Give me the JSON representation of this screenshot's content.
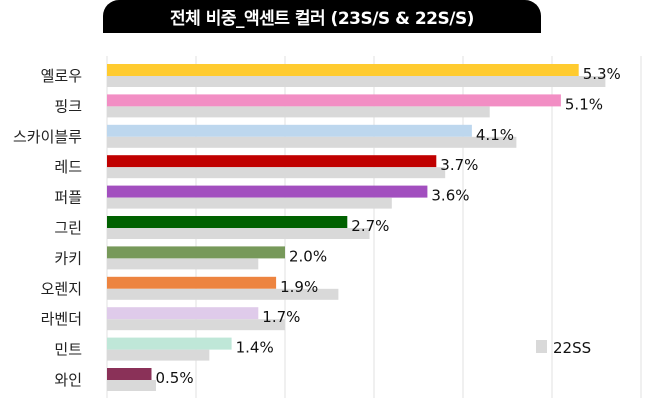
{
  "chart_data": {
    "type": "bar",
    "orientation": "horizontal",
    "title": "전체 비중_액센트 컬러 (23S/S & 22S/S)",
    "categories": [
      "옐로우",
      "핑크",
      "스카이블루",
      "레드",
      "퍼플",
      "그린",
      "카키",
      "오렌지",
      "라벤더",
      "민트",
      "와인"
    ],
    "series": [
      {
        "name": "23SS",
        "values": [
          5.3,
          5.1,
          4.1,
          3.7,
          3.6,
          2.7,
          2.0,
          1.9,
          1.7,
          1.4,
          0.5
        ],
        "colors": [
          "#FFCB2F",
          "#F28EC4",
          "#BDD7EE",
          "#C00000",
          "#A24FBF",
          "#006100",
          "#77995A",
          "#ED8440",
          "#DFCBEA",
          "#BFE7D8",
          "#8A3158"
        ],
        "labels": [
          "5.3%",
          "5.1%",
          "4.1%",
          "3.7%",
          "3.6%",
          "2.7%",
          "2.0%",
          "1.9%",
          "1.7%",
          "1.4%",
          "0.5%"
        ]
      },
      {
        "name": "22SS",
        "values": [
          5.6,
          4.3,
          4.6,
          3.8,
          3.2,
          2.95,
          1.7,
          2.6,
          2.0,
          1.15,
          0.55
        ],
        "color": "#D9D9D9"
      }
    ],
    "legend": {
      "entries": [
        "22SS"
      ],
      "position": "bottom-right"
    },
    "xlim": [
      0,
      6
    ],
    "grid": true,
    "xlabel": "",
    "ylabel": ""
  }
}
